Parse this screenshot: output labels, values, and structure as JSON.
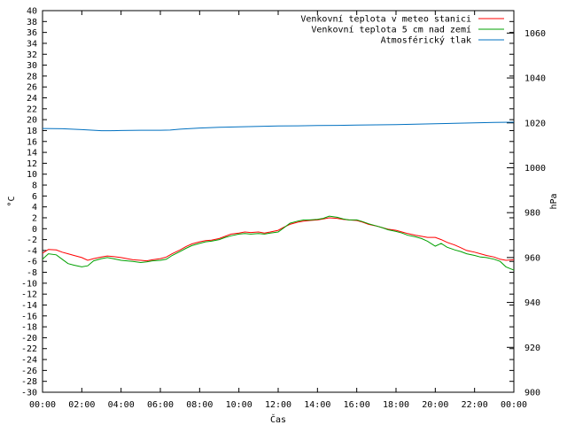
{
  "chart_data": {
    "type": "line",
    "xlabel": "Čas",
    "ylabel": "°C",
    "y2label": "hPa",
    "x_ticks": [
      "00:00",
      "02:00",
      "04:00",
      "06:00",
      "08:00",
      "10:00",
      "12:00",
      "14:00",
      "16:00",
      "18:00",
      "20:00",
      "22:00",
      "00:00"
    ],
    "x_range_hours": [
      0,
      24
    ],
    "ylim": [
      -30,
      40
    ],
    "y_ticks": [
      -30,
      -28,
      -26,
      -24,
      -22,
      -20,
      -18,
      -16,
      -14,
      -12,
      -10,
      -8,
      -6,
      -4,
      -2,
      0,
      2,
      4,
      6,
      8,
      10,
      12,
      14,
      16,
      18,
      20,
      22,
      24,
      26,
      28,
      30,
      32,
      34,
      36,
      38,
      40
    ],
    "y2lim": [
      900,
      1070
    ],
    "y2_ticks": [
      900,
      920,
      940,
      960,
      980,
      1000,
      1020,
      1040,
      1060
    ],
    "grid": false,
    "legend_position": "top-right",
    "series": [
      {
        "name": "Venkovní teplota v meteo stanici",
        "color": "#ff0000",
        "axis": "left",
        "x": [
          0,
          0.3,
          0.7,
          1.0,
          1.3,
          1.6,
          2.0,
          2.3,
          2.6,
          3.0,
          3.3,
          3.6,
          4.0,
          4.3,
          4.6,
          5.0,
          5.3,
          5.6,
          6.0,
          6.3,
          6.6,
          7.0,
          7.3,
          7.6,
          8.0,
          8.3,
          8.6,
          9.0,
          9.3,
          9.6,
          10.0,
          10.3,
          10.6,
          11.0,
          11.3,
          11.6,
          12.0,
          12.3,
          12.6,
          13.0,
          13.3,
          13.6,
          14.0,
          14.3,
          14.6,
          15.0,
          15.3,
          15.6,
          16.0,
          16.3,
          16.6,
          17.0,
          17.3,
          17.6,
          18.0,
          18.3,
          18.6,
          19.0,
          19.3,
          19.6,
          20.0,
          20.3,
          20.6,
          21.0,
          21.3,
          21.6,
          22.0,
          22.3,
          22.6,
          23.0,
          23.3,
          23.6,
          24.0
        ],
        "values": [
          -4.5,
          -3.8,
          -3.9,
          -4.3,
          -4.6,
          -4.9,
          -5.3,
          -5.8,
          -5.5,
          -5.2,
          -5.0,
          -5.1,
          -5.3,
          -5.5,
          -5.7,
          -5.8,
          -5.9,
          -5.7,
          -5.5,
          -5.2,
          -4.6,
          -3.9,
          -3.3,
          -2.8,
          -2.4,
          -2.2,
          -2.1,
          -1.8,
          -1.4,
          -1.0,
          -0.8,
          -0.6,
          -0.7,
          -0.6,
          -0.8,
          -0.6,
          -0.3,
          0.3,
          0.8,
          1.2,
          1.4,
          1.5,
          1.6,
          1.8,
          2.0,
          1.9,
          1.7,
          1.6,
          1.5,
          1.2,
          0.8,
          0.5,
          0.2,
          -0.1,
          -0.3,
          -0.6,
          -0.9,
          -1.2,
          -1.4,
          -1.6,
          -1.6,
          -2.0,
          -2.5,
          -3.0,
          -3.5,
          -4.0,
          -4.3,
          -4.6,
          -4.9,
          -5.2,
          -5.6,
          -5.8,
          -5.7
        ]
      },
      {
        "name": "Venkovní teplota 5 cm nad zemí",
        "color": "#00a000",
        "axis": "left",
        "x": [
          0,
          0.3,
          0.7,
          1.0,
          1.3,
          1.6,
          2.0,
          2.3,
          2.6,
          3.0,
          3.3,
          3.6,
          4.0,
          4.3,
          4.6,
          5.0,
          5.3,
          5.6,
          6.0,
          6.3,
          6.6,
          7.0,
          7.3,
          7.6,
          8.0,
          8.3,
          8.6,
          9.0,
          9.3,
          9.6,
          10.0,
          10.3,
          10.6,
          11.0,
          11.3,
          11.6,
          12.0,
          12.3,
          12.6,
          13.0,
          13.3,
          13.6,
          14.0,
          14.3,
          14.6,
          15.0,
          15.3,
          15.6,
          16.0,
          16.3,
          16.6,
          17.0,
          17.3,
          17.6,
          18.0,
          18.3,
          18.6,
          19.0,
          19.3,
          19.6,
          20.0,
          20.3,
          20.6,
          21.0,
          21.3,
          21.6,
          22.0,
          22.3,
          22.6,
          23.0,
          23.3,
          23.6,
          24.0
        ],
        "values": [
          -5.6,
          -4.6,
          -4.8,
          -5.6,
          -6.4,
          -6.7,
          -7.0,
          -6.8,
          -5.9,
          -5.5,
          -5.3,
          -5.5,
          -5.8,
          -5.9,
          -6.0,
          -6.2,
          -6.1,
          -5.9,
          -5.8,
          -5.6,
          -4.9,
          -4.2,
          -3.6,
          -3.1,
          -2.7,
          -2.4,
          -2.3,
          -2.0,
          -1.6,
          -1.3,
          -1.0,
          -0.9,
          -1.0,
          -0.9,
          -1.0,
          -0.8,
          -0.6,
          0.2,
          1.0,
          1.4,
          1.6,
          1.6,
          1.7,
          1.9,
          2.3,
          2.1,
          1.8,
          1.6,
          1.6,
          1.3,
          0.9,
          0.5,
          0.2,
          -0.2,
          -0.5,
          -0.8,
          -1.2,
          -1.5,
          -1.8,
          -2.3,
          -3.2,
          -2.7,
          -3.4,
          -3.9,
          -4.2,
          -4.6,
          -4.9,
          -5.2,
          -5.3,
          -5.6,
          -6.0,
          -7.0,
          -7.6
        ]
      },
      {
        "name": "Atmosférický tlak",
        "color": "#0070c0",
        "axis": "right",
        "x": [
          0,
          1,
          2,
          3,
          3.5,
          4,
          5,
          6,
          6.5,
          7,
          8,
          9,
          10,
          11,
          12,
          13,
          14,
          15,
          16,
          17,
          18,
          19,
          20,
          21,
          22,
          23,
          24
        ],
        "values": [
          1017.5,
          1017.4,
          1017.0,
          1016.5,
          1016.5,
          1016.6,
          1016.7,
          1016.7,
          1016.8,
          1017.2,
          1017.7,
          1018.0,
          1018.2,
          1018.4,
          1018.6,
          1018.7,
          1018.8,
          1018.9,
          1019.0,
          1019.1,
          1019.2,
          1019.4,
          1019.6,
          1019.8,
          1020.0,
          1020.2,
          1020.3
        ]
      }
    ]
  }
}
